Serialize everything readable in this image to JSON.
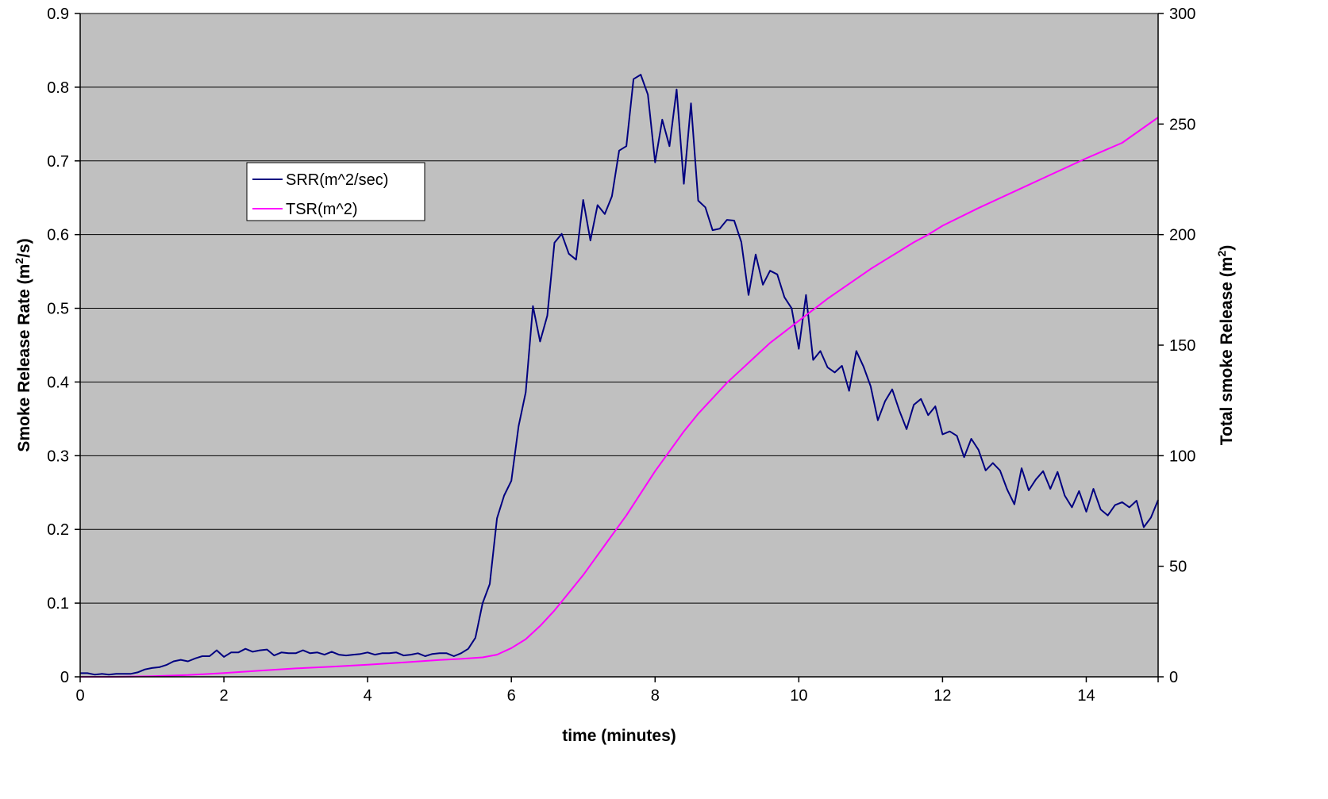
{
  "chart_data": {
    "type": "line",
    "title": "",
    "xlabel": "time (minutes)",
    "ylabel_left": "Smoke Release Rate (m²/s)",
    "ylabel_left_parts": [
      "Smoke Release Rate (m",
      "2",
      "/s)"
    ],
    "ylabel_right": "Total smoke Release (m²)",
    "ylabel_right_parts": [
      "Total smoke Release (m",
      "2",
      ")"
    ],
    "xlim": [
      0,
      15
    ],
    "ylim_left": [
      0,
      0.9
    ],
    "ylim_right": [
      0,
      300
    ],
    "x_ticks": [
      0,
      2,
      4,
      6,
      8,
      10,
      12,
      14
    ],
    "y_left_ticks": [
      "0",
      "0.1",
      "0.2",
      "0.3",
      "0.4",
      "0.5",
      "0.6",
      "0.7",
      "0.8",
      "0.9"
    ],
    "y_right_ticks": [
      "0",
      "50",
      "100",
      "150",
      "200",
      "250",
      "300"
    ],
    "plot_background": "#c0c0c0",
    "grid": "horizontal",
    "legend_position": "upper-left",
    "series": [
      {
        "name": "SRR(m^2/sec)",
        "axis": "left",
        "color": "#000080",
        "x": [
          0,
          0.1,
          0.2,
          0.3,
          0.4,
          0.5,
          0.6,
          0.7,
          0.8,
          0.9,
          1.0,
          1.1,
          1.2,
          1.3,
          1.4,
          1.5,
          1.6,
          1.7,
          1.8,
          1.9,
          2.0,
          2.1,
          2.2,
          2.3,
          2.4,
          2.5,
          2.6,
          2.7,
          2.8,
          2.9,
          3.0,
          3.1,
          3.2,
          3.3,
          3.4,
          3.5,
          3.6,
          3.7,
          3.8,
          3.9,
          4.0,
          4.1,
          4.2,
          4.3,
          4.4,
          4.5,
          4.6,
          4.7,
          4.8,
          4.9,
          5.0,
          5.1,
          5.2,
          5.3,
          5.4,
          5.5,
          5.6,
          5.7,
          5.8,
          5.9,
          6.0,
          6.1,
          6.2,
          6.3,
          6.4,
          6.5,
          6.6,
          6.7,
          6.8,
          6.9,
          7.0,
          7.1,
          7.2,
          7.3,
          7.4,
          7.5,
          7.6,
          7.7,
          7.8,
          7.9,
          8.0,
          8.1,
          8.2,
          8.3,
          8.4,
          8.5,
          8.6,
          8.7,
          8.8,
          8.9,
          9.0,
          9.1,
          9.2,
          9.3,
          9.4,
          9.5,
          9.6,
          9.7,
          9.8,
          9.9,
          10.0,
          10.1,
          10.2,
          10.3,
          10.4,
          10.5,
          10.6,
          10.7,
          10.8,
          10.9,
          11.0,
          11.1,
          11.2,
          11.3,
          11.4,
          11.5,
          11.6,
          11.7,
          11.8,
          11.9,
          12.0,
          12.1,
          12.2,
          12.3,
          12.4,
          12.5,
          12.6,
          12.7,
          12.8,
          12.9,
          13.0,
          13.1,
          13.2,
          13.3,
          13.4,
          13.5,
          13.6,
          13.7,
          13.8,
          13.9,
          14.0,
          14.1,
          14.2,
          14.3,
          14.4,
          14.5,
          14.6,
          14.7,
          14.8,
          14.9,
          15.0
        ],
        "values": [
          0.005,
          0.005,
          0.003,
          0.004,
          0.003,
          0.004,
          0.004,
          0.004,
          0.006,
          0.01,
          0.012,
          0.013,
          0.016,
          0.021,
          0.023,
          0.021,
          0.025,
          0.028,
          0.028,
          0.036,
          0.027,
          0.033,
          0.033,
          0.038,
          0.034,
          0.036,
          0.037,
          0.029,
          0.033,
          0.032,
          0.032,
          0.036,
          0.032,
          0.033,
          0.03,
          0.034,
          0.03,
          0.029,
          0.03,
          0.031,
          0.033,
          0.03,
          0.032,
          0.032,
          0.033,
          0.029,
          0.03,
          0.032,
          0.028,
          0.031,
          0.032,
          0.032,
          0.028,
          0.032,
          0.038,
          0.053,
          0.1,
          0.126,
          0.215,
          0.246,
          0.266,
          0.34,
          0.386,
          0.503,
          0.455,
          0.49,
          0.589,
          0.601,
          0.574,
          0.566,
          0.647,
          0.592,
          0.64,
          0.628,
          0.652,
          0.714,
          0.72,
          0.811,
          0.817,
          0.79,
          0.698,
          0.756,
          0.72,
          0.797,
          0.669,
          0.778,
          0.646,
          0.637,
          0.606,
          0.608,
          0.62,
          0.619,
          0.59,
          0.518,
          0.573,
          0.532,
          0.551,
          0.546,
          0.515,
          0.5,
          0.445,
          0.518,
          0.43,
          0.442,
          0.42,
          0.413,
          0.422,
          0.388,
          0.442,
          0.421,
          0.394,
          0.348,
          0.374,
          0.39,
          0.361,
          0.336,
          0.369,
          0.377,
          0.355,
          0.367,
          0.329,
          0.333,
          0.327,
          0.298,
          0.323,
          0.308,
          0.28,
          0.29,
          0.28,
          0.254,
          0.234,
          0.283,
          0.253,
          0.268,
          0.279,
          0.255,
          0.278,
          0.246,
          0.23,
          0.252,
          0.224,
          0.255,
          0.227,
          0.219,
          0.233,
          0.237,
          0.23,
          0.239,
          0.203,
          0.216,
          0.24
        ]
      },
      {
        "name": "TSR(m^2)",
        "axis": "right",
        "color": "#ff00ff",
        "x": [
          0,
          0.5,
          1.0,
          1.5,
          2.0,
          2.5,
          3.0,
          3.5,
          4.0,
          4.5,
          5.0,
          5.3,
          5.6,
          5.8,
          6.0,
          6.2,
          6.4,
          6.6,
          6.8,
          7.0,
          7.2,
          7.4,
          7.6,
          7.8,
          8.0,
          8.2,
          8.4,
          8.6,
          8.8,
          9.0,
          9.2,
          9.4,
          9.6,
          9.8,
          10.0,
          10.2,
          10.4,
          10.6,
          10.8,
          11.0,
          11.2,
          11.4,
          11.6,
          11.8,
          12.0,
          12.5,
          13.0,
          13.5,
          14.0,
          14.5,
          15.0
        ],
        "values": [
          0,
          0,
          0.3,
          0.8,
          1.7,
          2.8,
          3.8,
          4.6,
          5.5,
          6.5,
          7.6,
          8.1,
          8.8,
          10.0,
          13.0,
          17.0,
          23.0,
          30.0,
          38.0,
          46.0,
          55.0,
          64.0,
          73.0,
          83.0,
          93.0,
          102.0,
          111.0,
          119.0,
          126.0,
          133.0,
          139.0,
          145.0,
          151.0,
          156.0,
          161.0,
          166.0,
          171.0,
          175.5,
          180.0,
          184.5,
          188.5,
          192.5,
          196.5,
          200.0,
          204.0,
          212.0,
          219.5,
          227.0,
          234.5,
          241.5,
          253.0
        ]
      }
    ]
  }
}
